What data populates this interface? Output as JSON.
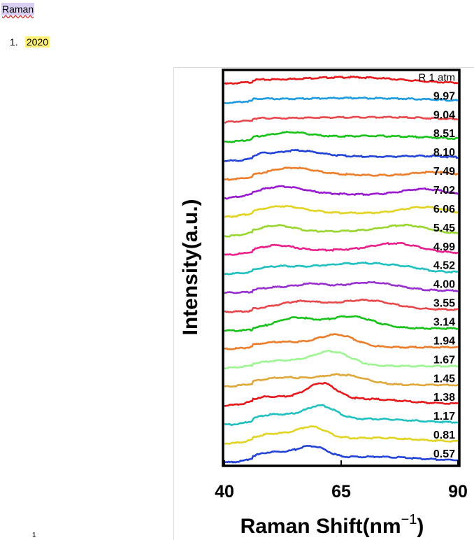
{
  "document": {
    "heading": "Raman",
    "list": [
      {
        "number": "1.",
        "text": "2020"
      }
    ],
    "page_number": "1"
  },
  "chart_data": {
    "type": "line",
    "title": "",
    "xlabel": "Raman Shift(nm",
    "xlabel_exponent": "−1",
    "xlabel_close": ")",
    "ylabel": "Intensity(a.u.)",
    "xlim": [
      40,
      90
    ],
    "xticks": [
      "40",
      "65",
      "90"
    ],
    "stacked_offset": true,
    "series": [
      {
        "label": "R 1 atm",
        "color": "#e41a1c",
        "peaks": [
          [
            46,
            0.15,
            4
          ],
          [
            62,
            0.85,
            14
          ],
          [
            71,
            0.3,
            8
          ]
        ]
      },
      {
        "label": "9.97",
        "color": "#1e9be0",
        "peaks": [
          [
            47,
            0.2,
            3
          ],
          [
            60,
            0.6,
            15
          ],
          [
            80,
            0.35,
            12
          ]
        ]
      },
      {
        "label": "9.04",
        "color": "#e8474b",
        "peaks": [
          [
            47,
            0.15,
            3
          ],
          [
            60,
            0.5,
            15
          ],
          [
            80,
            0.4,
            12
          ]
        ]
      },
      {
        "label": "8.51",
        "color": "#18c21a",
        "peaks": [
          [
            47,
            0.3,
            3
          ],
          [
            54,
            1.0,
            4
          ],
          [
            65,
            0.5,
            10
          ],
          [
            80,
            0.4,
            10
          ]
        ]
      },
      {
        "label": "8.10",
        "color": "#2343d6",
        "peaks": [
          [
            48,
            0.45,
            1.5
          ],
          [
            55,
            1.2,
            5
          ],
          [
            66,
            0.4,
            10
          ],
          [
            84,
            0.4,
            6
          ]
        ]
      },
      {
        "label": "7.49",
        "color": "#ec7d2b",
        "peaks": [
          [
            54,
            1.4,
            5
          ],
          [
            65,
            0.5,
            10
          ],
          [
            85,
            0.9,
            5
          ]
        ]
      },
      {
        "label": "7.02",
        "color": "#9a1ad0",
        "peaks": [
          [
            52,
            1.5,
            5
          ],
          [
            65,
            0.4,
            10
          ],
          [
            83,
            1.2,
            5
          ]
        ]
      },
      {
        "label": "6.06",
        "color": "#e1d424",
        "peaks": [
          [
            52,
            1.4,
            5
          ],
          [
            66,
            0.4,
            10
          ],
          [
            83,
            1.3,
            5
          ]
        ]
      },
      {
        "label": "5.45",
        "color": "#99d630",
        "peaks": [
          [
            51,
            1.3,
            4
          ],
          [
            66,
            0.5,
            10
          ],
          [
            79,
            1.3,
            5
          ]
        ]
      },
      {
        "label": "4.99",
        "color": "#eb1f8a",
        "peaks": [
          [
            51,
            1.1,
            4
          ],
          [
            65,
            0.5,
            10
          ],
          [
            77,
            1.4,
            5
          ]
        ]
      },
      {
        "label": "4.52",
        "color": "#20c0c0",
        "peaks": [
          [
            51,
            0.8,
            4
          ],
          [
            63,
            1.1,
            6
          ],
          [
            73,
            1.1,
            5
          ],
          [
            80,
            0.4,
            3
          ]
        ]
      },
      {
        "label": "4.00",
        "color": "#9830d0",
        "peaks": [
          [
            52,
            0.6,
            4
          ],
          [
            59,
            0.9,
            3
          ],
          [
            71,
            1.4,
            6
          ]
        ]
      },
      {
        "label": "3.55",
        "color": "#e8474b",
        "peaks": [
          [
            52,
            0.4,
            4
          ],
          [
            57,
            1.1,
            4
          ],
          [
            70,
            1.6,
            6
          ]
        ]
      },
      {
        "label": "3.14",
        "color": "#18c21a",
        "peaks": [
          [
            55,
            1.7,
            4
          ],
          [
            67,
            2.0,
            5
          ]
        ]
      },
      {
        "label": "1.94",
        "color": "#ec7d2b",
        "peaks": [
          [
            52,
            0.9,
            5
          ],
          [
            64,
            2.1,
            4
          ]
        ]
      },
      {
        "label": "1.67",
        "color": "#9ff594",
        "peaks": [
          [
            52,
            0.9,
            5
          ],
          [
            63,
            2.4,
            4
          ]
        ]
      },
      {
        "label": "1.45",
        "color": "#e0a73a",
        "peaks": [
          [
            52,
            1.2,
            5
          ],
          [
            65,
            1.7,
            5
          ]
        ]
      },
      {
        "label": "1.38",
        "color": "#e41a1c",
        "peaks": [
          [
            48,
            0.7,
            3
          ],
          [
            55,
            1.0,
            5
          ],
          [
            61,
            2.6,
            3
          ],
          [
            70,
            0.8,
            8
          ]
        ]
      },
      {
        "label": "1.17",
        "color": "#20c0c0",
        "peaks": [
          [
            49,
            0.8,
            3
          ],
          [
            56,
            1.2,
            5
          ],
          [
            61,
            1.9,
            3
          ],
          [
            72,
            0.6,
            8
          ]
        ]
      },
      {
        "label": "0.81",
        "color": "#e1d424",
        "peaks": [
          [
            49,
            0.7,
            3
          ],
          [
            55,
            1.0,
            5
          ],
          [
            59,
            1.6,
            3
          ],
          [
            72,
            0.6,
            8
          ]
        ]
      },
      {
        "label": "0.57",
        "color": "#2343d6",
        "peaks": [
          [
            49,
            0.8,
            3
          ],
          [
            55,
            1.0,
            5
          ],
          [
            59,
            1.5,
            3
          ],
          [
            72,
            0.6,
            8
          ]
        ]
      }
    ]
  }
}
